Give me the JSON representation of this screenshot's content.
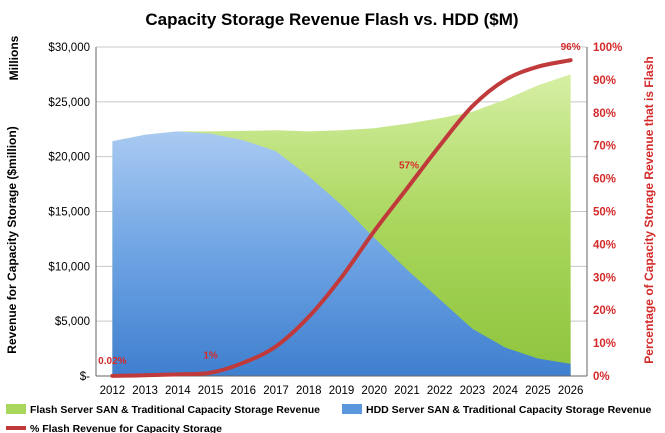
{
  "chart_data": {
    "type": "area",
    "title": "Capacity Storage Revenue Flash vs. HDD ($M)",
    "y_unit_label": "Millions",
    "ylabel": "Revenue for Capacity Storage ($million)",
    "y2label": "Percentage of Capacity Storage Revenue that is Flash",
    "ylim": [
      0,
      30000
    ],
    "y2lim": [
      0,
      100
    ],
    "y_tick_labels": [
      "$-",
      "$5,000",
      "$10,000",
      "$15,000",
      "$20,000",
      "$25,000",
      "$30,000"
    ],
    "y2_tick_labels": [
      "0%",
      "10%",
      "20%",
      "30%",
      "40%",
      "50%",
      "60%",
      "70%",
      "80%",
      "90%",
      "100%"
    ],
    "x": [
      "2012",
      "2013",
      "2014",
      "2015",
      "2016",
      "2017",
      "2018",
      "2019",
      "2020",
      "2021",
      "2022",
      "2023",
      "2024",
      "2025",
      "2026"
    ],
    "grid": "horizontal",
    "legend_position": "bottom",
    "colors": {
      "flash": "#9fd24a",
      "hdd": "#5b97dc",
      "pct": "#c0393b",
      "red_text": "#d42a2a"
    },
    "series": [
      {
        "name": "Flash Server SAN & Traditional Capacity Storage Revenue",
        "kind": "area",
        "values": [
          21400,
          22000,
          22300,
          22300,
          22350,
          22400,
          22300,
          22400,
          22600,
          23000,
          23500,
          24100,
          25200,
          26500,
          27500
        ]
      },
      {
        "name": "HDD Server SAN & Traditional Capacity Storage Revenue",
        "kind": "area",
        "values": [
          21400,
          22000,
          22300,
          22100,
          21500,
          20500,
          18200,
          15600,
          12600,
          9700,
          7000,
          4300,
          2600,
          1600,
          1100
        ]
      },
      {
        "name": "% Flash Revenue for Capacity Storage",
        "kind": "line",
        "axis": "right",
        "values": [
          0.02,
          0.2,
          0.5,
          1,
          4,
          9,
          18,
          30,
          44,
          57,
          70,
          82,
          90,
          94,
          96
        ]
      }
    ],
    "annotations": [
      {
        "x": "2012",
        "text": "0.02%"
      },
      {
        "x": "2015",
        "text": "1%"
      },
      {
        "x": "2021",
        "text": "57%"
      },
      {
        "x": "2026",
        "text": "96%"
      }
    ]
  }
}
